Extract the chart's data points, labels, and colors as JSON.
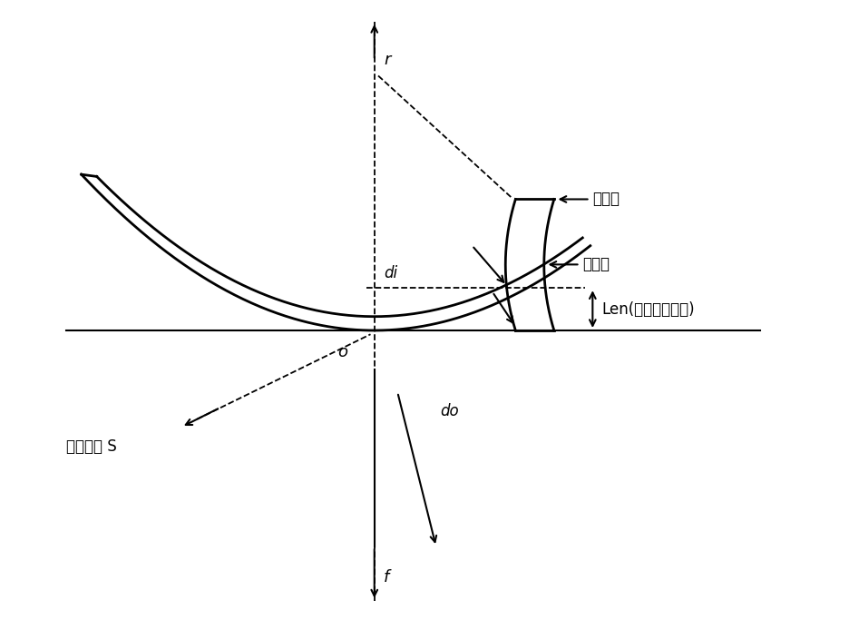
{
  "background_color": "#ffffff",
  "axis_color": "#000000",
  "dashed_color": "#000000",
  "fig_width": 9.36,
  "fig_height": 6.94,
  "label_r": "r",
  "label_f": "f",
  "label_o": "o",
  "label_di": "di",
  "label_do": "do",
  "label_array_face": "阵元面",
  "label_probe_face": "探头面",
  "label_len": "Len(透镜、匹配层)",
  "label_beam_start": "波束起点 S",
  "font_size_labels": 13,
  "font_size_small": 12
}
